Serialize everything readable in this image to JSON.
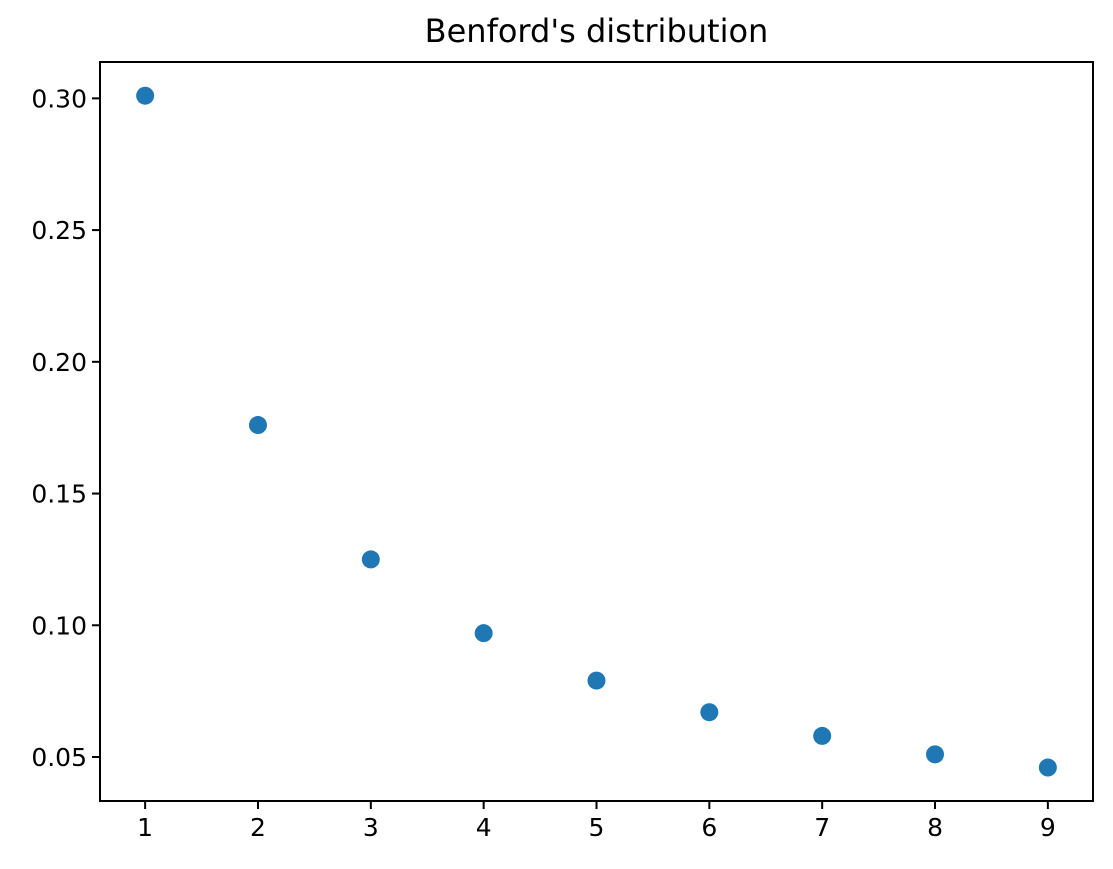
{
  "chart_data": {
    "type": "scatter",
    "title": "Benford's distribution",
    "xlabel": "",
    "ylabel": "",
    "x": [
      1,
      2,
      3,
      4,
      5,
      6,
      7,
      8,
      9
    ],
    "y": [
      0.301,
      0.176,
      0.125,
      0.097,
      0.079,
      0.067,
      0.058,
      0.051,
      0.046
    ],
    "xlim": [
      0.6,
      9.4
    ],
    "ylim": [
      0.0333,
      0.3138
    ],
    "x_ticks": [
      1,
      2,
      3,
      4,
      5,
      6,
      7,
      8,
      9
    ],
    "x_tick_labels": [
      "1",
      "2",
      "3",
      "4",
      "5",
      "6",
      "7",
      "8",
      "9"
    ],
    "y_ticks": [
      0.05,
      0.1,
      0.15,
      0.2,
      0.25,
      0.3
    ],
    "y_tick_labels": [
      "0.05",
      "0.10",
      "0.15",
      "0.20",
      "0.25",
      "0.30"
    ],
    "grid": false,
    "legend": "none",
    "marker_color": "#1f77b4",
    "axis_color": "#000000",
    "background_color": "#ffffff"
  }
}
